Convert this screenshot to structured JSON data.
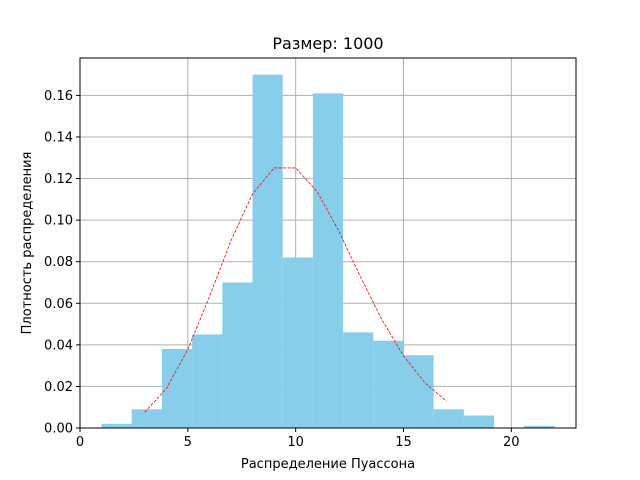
{
  "chart_data": {
    "type": "bar",
    "title": "Размер: 1000",
    "xlabel": "Распределение Пуассона",
    "ylabel": "Плотность распределения",
    "xlim": [
      0,
      23
    ],
    "ylim": [
      0,
      0.178
    ],
    "xticks": [
      0,
      5,
      10,
      15,
      20
    ],
    "xtick_labels": [
      "0",
      "5",
      "10",
      "15",
      "20"
    ],
    "yticks": [
      0.0,
      0.02,
      0.04,
      0.06,
      0.08,
      0.1,
      0.12,
      0.14,
      0.16
    ],
    "ytick_labels": [
      "0.00",
      "0.02",
      "0.04",
      "0.06",
      "0.08",
      "0.10",
      "0.12",
      "0.14",
      "0.16"
    ],
    "grid": true,
    "colors": {
      "bars": "#87ceeb",
      "density_line": "#ff0000"
    },
    "histogram": {
      "bins": [
        {
          "x0": 1.0,
          "x1": 2.4,
          "density": 0.002
        },
        {
          "x0": 2.4,
          "x1": 3.8,
          "density": 0.009
        },
        {
          "x0": 3.8,
          "x1": 5.2,
          "density": 0.038
        },
        {
          "x0": 5.2,
          "x1": 6.6,
          "density": 0.045
        },
        {
          "x0": 6.6,
          "x1": 8.0,
          "density": 0.07
        },
        {
          "x0": 8.0,
          "x1": 9.4,
          "density": 0.17
        },
        {
          "x0": 9.4,
          "x1": 10.8,
          "density": 0.082
        },
        {
          "x0": 10.8,
          "x1": 12.2,
          "density": 0.161
        },
        {
          "x0": 12.2,
          "x1": 13.6,
          "density": 0.046
        },
        {
          "x0": 13.6,
          "x1": 15.0,
          "density": 0.042
        },
        {
          "x0": 15.0,
          "x1": 16.4,
          "density": 0.035
        },
        {
          "x0": 16.4,
          "x1": 17.8,
          "density": 0.009
        },
        {
          "x0": 17.8,
          "x1": 19.2,
          "density": 0.006
        },
        {
          "x0": 19.2,
          "x1": 20.6,
          "density": 0.0
        },
        {
          "x0": 20.6,
          "x1": 22.0,
          "density": 0.001
        }
      ]
    },
    "density_line": {
      "style": "dashed",
      "x": [
        3,
        4,
        5,
        6,
        7,
        8,
        9,
        10,
        11,
        12,
        13,
        14,
        15,
        16,
        17
      ],
      "y": [
        0.0076,
        0.0189,
        0.0378,
        0.0631,
        0.0901,
        0.1126,
        0.1251,
        0.1251,
        0.1137,
        0.0948,
        0.0729,
        0.0521,
        0.0347,
        0.0217,
        0.0128
      ]
    }
  }
}
